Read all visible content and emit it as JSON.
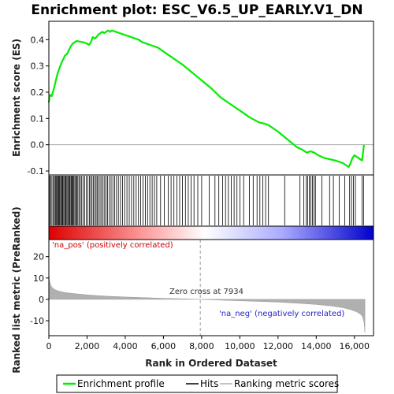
{
  "chart_data": {
    "type": "line",
    "title": "Enrichment plot: ESC_V6.5_UP_EARLY.V1_DN",
    "es_panel": {
      "ylabel": "Enrichment score (ES)",
      "yticks": [
        -0.1,
        0.0,
        0.1,
        0.2,
        0.3,
        0.4
      ],
      "ytick_labels": [
        "-0.1",
        "0.0",
        "0.1",
        "0.2",
        "0.3",
        "0.4"
      ],
      "ylim": [
        -0.115,
        0.47
      ],
      "grid": false,
      "baseline": 0.0
    },
    "rank_panel": {
      "ylabel": "Ranked list metric (PreRanked)",
      "yticks": [
        -10,
        0,
        10,
        20
      ],
      "ytick_labels": [
        "-10",
        "0",
        "10",
        "20"
      ],
      "ylim": [
        -17,
        28
      ],
      "pos_label": "'na_pos' (positively correlated)",
      "neg_label": "'na_neg' (negatively correlated)",
      "zero_cross_label": "Zero cross at 7934",
      "zero_cross": 7934
    },
    "xlabel": "Rank in Ordered Dataset",
    "xlim": [
      0,
      17000
    ],
    "xticks": [
      0,
      2000,
      4000,
      6000,
      8000,
      10000,
      12000,
      14000,
      16000
    ],
    "xtick_labels": [
      "0",
      "2,000",
      "4,000",
      "6,000",
      "8,000",
      "10,000",
      "12,000",
      "14,000",
      "16,000"
    ],
    "n_genes": 16550,
    "series": [
      {
        "name": "Enrichment profile",
        "color": "#00ee00",
        "x": [
          0,
          50,
          150,
          250,
          350,
          450,
          550,
          650,
          750,
          850,
          950,
          1050,
          1150,
          1250,
          1350,
          1450,
          1600,
          1800,
          2000,
          2100,
          2200,
          2300,
          2400,
          2500,
          2600,
          2700,
          2800,
          2900,
          3000,
          3100,
          3200,
          3300,
          3500,
          3700,
          3900,
          4100,
          4300,
          4500,
          4700,
          4900,
          5100,
          5300,
          5500,
          5700,
          6000,
          6500,
          7000,
          7500,
          8000,
          8500,
          9000,
          9500,
          10000,
          10500,
          11000,
          11300,
          11500,
          12000,
          12500,
          13000,
          13300,
          13500,
          13700,
          13900,
          14100,
          14400,
          14700,
          15000,
          15200,
          15400,
          15700,
          15800,
          15900,
          16000,
          16200,
          16400,
          16500
        ],
        "y": [
          0.16,
          0.19,
          0.185,
          0.21,
          0.24,
          0.27,
          0.29,
          0.31,
          0.325,
          0.34,
          0.345,
          0.36,
          0.375,
          0.385,
          0.39,
          0.395,
          0.393,
          0.39,
          0.385,
          0.38,
          0.39,
          0.41,
          0.405,
          0.41,
          0.42,
          0.425,
          0.43,
          0.425,
          0.43,
          0.435,
          0.43,
          0.435,
          0.43,
          0.425,
          0.42,
          0.415,
          0.41,
          0.405,
          0.4,
          0.39,
          0.385,
          0.38,
          0.375,
          0.37,
          0.355,
          0.33,
          0.305,
          0.275,
          0.245,
          0.215,
          0.18,
          0.155,
          0.13,
          0.105,
          0.085,
          0.08,
          0.075,
          0.05,
          0.02,
          -0.01,
          -0.02,
          -0.03,
          -0.025,
          -0.03,
          -0.04,
          -0.05,
          -0.055,
          -0.06,
          -0.065,
          -0.07,
          -0.085,
          -0.07,
          -0.05,
          -0.04,
          -0.05,
          -0.06,
          0.0
        ]
      },
      {
        "name": "Hits",
        "color": "#000000",
        "hits": [
          5,
          40,
          90,
          160,
          230,
          290,
          340,
          380,
          420,
          470,
          520,
          560,
          610,
          660,
          700,
          740,
          790,
          840,
          890,
          940,
          990,
          1040,
          1080,
          1120,
          1170,
          1220,
          1260,
          1310,
          1360,
          1410,
          1460,
          1520,
          1580,
          1650,
          1720,
          1800,
          1880,
          1960,
          2040,
          2120,
          2190,
          2260,
          2330,
          2400,
          2470,
          2530,
          2600,
          2680,
          2760,
          2840,
          2920,
          3000,
          3080,
          3170,
          3260,
          3350,
          3440,
          3540,
          3640,
          3750,
          3860,
          3970,
          4090,
          4210,
          4330,
          4450,
          4570,
          4690,
          4810,
          4930,
          5050,
          5170,
          5290,
          5410,
          5530,
          5650,
          5850,
          6050,
          6250,
          6400,
          6550,
          6700,
          6850,
          7000,
          7150,
          7300,
          7450,
          7600,
          7800,
          8000,
          8400,
          8700,
          8900,
          9100,
          9250,
          9400,
          9550,
          9700,
          9850,
          10000,
          10200,
          10500,
          10700,
          10900,
          11050,
          11200,
          11350,
          11500,
          12350,
          13150,
          13350,
          13480,
          13560,
          13640,
          13720,
          13800,
          13880,
          13960,
          14300,
          14700,
          14900,
          15200,
          15500,
          15750,
          15850,
          15950,
          16050,
          16400,
          16480
        ]
      },
      {
        "name": "Ranking metric scores",
        "color": "#b0b0b0",
        "x": [
          0,
          30,
          80,
          150,
          300,
          500,
          800,
          1200,
          2000,
          3000,
          4000,
          5000,
          6000,
          7000,
          7934,
          9000,
          10000,
          11000,
          12000,
          13000,
          14000,
          14800,
          15400,
          15800,
          16100,
          16300,
          16400,
          16450,
          16500,
          16530,
          16550
        ],
        "y": [
          12.5,
          9,
          7.2,
          5.8,
          4.6,
          3.9,
          3.3,
          2.8,
          2.1,
          1.5,
          1.1,
          0.8,
          0.5,
          0.25,
          0.0,
          -0.35,
          -0.65,
          -0.95,
          -1.3,
          -1.8,
          -2.4,
          -3.1,
          -3.9,
          -4.8,
          -5.8,
          -6.8,
          -7.8,
          -9,
          -10.5,
          -13,
          -15.5
        ]
      }
    ],
    "colorbar": {
      "stops": [
        "#dd0000",
        "#ffaaaa",
        "#ffffff",
        "#aaaaff",
        "#0000cc"
      ]
    }
  }
}
